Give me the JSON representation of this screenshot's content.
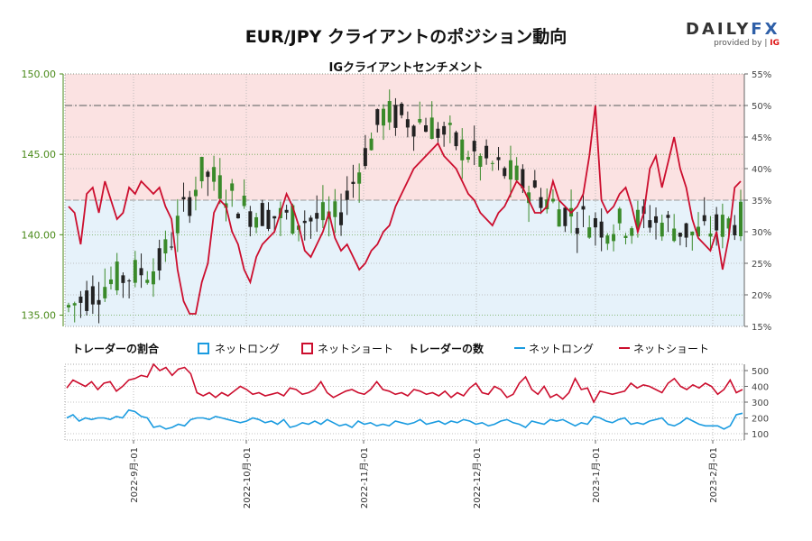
{
  "title": "EUR/JPY クライアントのポジション動向",
  "subtitle": "IGクライアントセンチメント",
  "logo": {
    "main_a": "DAILY",
    "main_b": "FX",
    "provided_by": "provided by",
    "ig": "IG"
  },
  "legend": {
    "ratio_title": "トレーダーの割合",
    "ratio_long": "ネットロング",
    "ratio_short": "ネットショート",
    "count_title": "トレーダーの数",
    "count_long": "ネットロング",
    "count_short": "ネットショート"
  },
  "colors": {
    "long": "#1a9be0",
    "short": "#cc0e2e",
    "long_bg": "#e6f2fa",
    "short_bg": "#fbe2e2",
    "axis_price": "#4a8a1a",
    "candle_up": "#3a8a2a",
    "candle_down": "#222222"
  },
  "chart_data": [
    {
      "type": "candlestick+line",
      "title": "IGクライアントセンチメント",
      "left_axis": {
        "ticks": [
          "135.00",
          "140.00",
          "145.00",
          "150.00"
        ],
        "ylim": [
          134.3,
          150.0
        ]
      },
      "right_axis": {
        "ticks": [
          "15%",
          "20%",
          "25%",
          "30%",
          "35%",
          "40%",
          "45%",
          "50%",
          "55%"
        ],
        "ylim": [
          15,
          55
        ]
      },
      "x_tick_labels": [
        "2022-9月-01",
        "2022-10月-01",
        "2022-11月-01",
        "2022-12月-01",
        "2023-1月-01",
        "2023-2月-01"
      ],
      "reference_line_pct": 50,
      "price_candles_approx": [
        {
          "period": "2022-08 late",
          "open": 135.5,
          "high": 137.8,
          "low": 135.0,
          "close": 137.2
        },
        {
          "period": "2022-09 early",
          "open": 138.0,
          "high": 144.5,
          "low": 137.5,
          "close": 144.0
        },
        {
          "period": "2022-09 late",
          "open": 141.5,
          "high": 145.0,
          "low": 137.5,
          "close": 141.0
        },
        {
          "period": "2022-10",
          "open": 141.0,
          "high": 148.3,
          "low": 140.5,
          "close": 147.5
        },
        {
          "period": "2022-11",
          "open": 147.0,
          "high": 148.0,
          "low": 143.5,
          "close": 145.0
        },
        {
          "period": "2022-12",
          "open": 143.5,
          "high": 146.5,
          "low": 139.5,
          "close": 141.5
        },
        {
          "period": "2023-01",
          "open": 140.5,
          "high": 142.8,
          "low": 137.5,
          "close": 141.0
        },
        {
          "period": "2023-02 early",
          "open": 140.0,
          "high": 143.5,
          "low": 139.0,
          "close": 141.0
        }
      ],
      "series": [
        {
          "name": "ネットショート",
          "unit": "%",
          "values_approx": [
            34,
            33,
            28,
            36,
            37,
            33,
            38,
            35,
            32,
            33,
            37,
            36,
            38,
            37,
            36,
            37,
            34,
            32,
            24,
            19,
            17,
            17,
            22,
            25,
            33,
            35,
            34,
            30,
            28,
            24,
            22,
            26,
            28,
            29,
            30,
            33,
            36,
            34,
            31,
            27,
            26,
            28,
            30,
            33,
            29,
            27,
            28,
            26,
            24,
            25,
            27,
            28,
            30,
            31,
            34,
            36,
            38,
            40,
            41,
            42,
            43,
            44,
            42,
            41,
            40,
            38,
            36,
            35,
            33,
            32,
            31,
            33,
            34,
            36,
            38,
            37,
            35,
            33,
            33,
            34,
            38,
            35,
            34,
            33,
            34,
            36,
            42,
            50,
            35,
            33,
            34,
            36,
            37,
            34,
            30,
            33,
            40,
            42,
            37,
            41,
            45,
            40,
            37,
            32,
            29,
            28,
            27,
            30,
            24,
            29,
            37,
            38
          ]
        },
        {
          "name": "ネットロング",
          "unit": "%",
          "note": "100 minus net short"
        }
      ]
    },
    {
      "type": "line",
      "title": "トレーダーの数",
      "right_axis": {
        "ticks": [
          "100",
          "200",
          "300",
          "400",
          "500"
        ],
        "ylim": [
          60,
          540
        ]
      },
      "x_tick_labels": [
        "2022-9月-01",
        "2022-10月-01",
        "2022-11月-01",
        "2022-12月-01",
        "2023-1月-01",
        "2023-2月-01"
      ],
      "series": [
        {
          "name": "ネットショート",
          "values_approx": [
            390,
            440,
            420,
            400,
            430,
            380,
            420,
            430,
            370,
            400,
            440,
            450,
            470,
            460,
            540,
            500,
            520,
            470,
            510,
            520,
            480,
            360,
            340,
            360,
            330,
            360,
            340,
            370,
            400,
            380,
            350,
            360,
            340,
            350,
            360,
            340,
            390,
            380,
            350,
            360,
            380,
            430,
            360,
            330,
            350,
            370,
            380,
            360,
            350,
            380,
            430,
            380,
            370,
            350,
            360,
            340,
            380,
            370,
            350,
            360,
            340,
            370,
            330,
            360,
            340,
            390,
            420,
            360,
            350,
            400,
            380,
            330,
            350,
            420,
            460,
            380,
            350,
            400,
            330,
            350,
            320,
            360,
            450,
            380,
            390,
            300,
            370,
            360,
            350,
            360,
            370,
            420,
            390,
            410,
            400,
            380,
            360,
            420,
            450,
            400,
            380,
            410,
            390,
            420,
            400,
            350,
            380,
            440,
            360,
            380
          ]
        },
        {
          "name": "ネットロング",
          "values_approx": [
            200,
            220,
            180,
            200,
            190,
            200,
            200,
            190,
            210,
            200,
            250,
            240,
            210,
            200,
            140,
            150,
            130,
            140,
            160,
            150,
            190,
            200,
            200,
            190,
            210,
            200,
            190,
            180,
            170,
            180,
            200,
            190,
            170,
            180,
            160,
            190,
            140,
            150,
            170,
            160,
            180,
            160,
            190,
            170,
            150,
            160,
            140,
            180,
            160,
            170,
            150,
            160,
            150,
            180,
            170,
            160,
            170,
            190,
            160,
            170,
            180,
            160,
            180,
            170,
            190,
            180,
            160,
            170,
            150,
            160,
            180,
            190,
            170,
            160,
            140,
            180,
            170,
            160,
            190,
            180,
            190,
            170,
            150,
            170,
            160,
            210,
            200,
            180,
            170,
            190,
            200,
            160,
            170,
            160,
            180,
            190,
            200,
            160,
            150,
            170,
            200,
            180,
            160,
            150,
            150,
            150,
            130,
            150,
            220,
            230
          ]
        }
      ]
    }
  ]
}
